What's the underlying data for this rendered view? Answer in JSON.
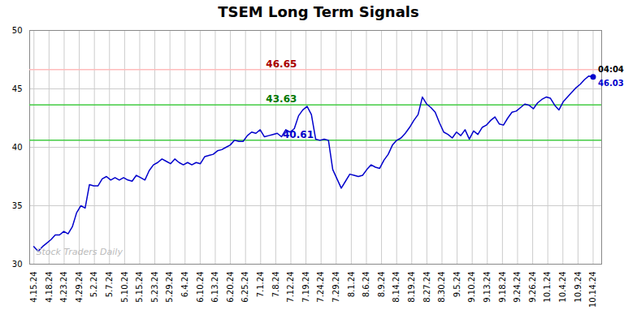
{
  "chart_data": {
    "type": "line",
    "title": "TSEM Long Term Signals",
    "color": "#0000cc",
    "values": [
      31.5,
      31.1,
      31.5,
      31.8,
      32.1,
      32.5,
      32.5,
      32.8,
      32.6,
      33.2,
      34.4,
      35.0,
      34.8,
      36.8,
      36.7,
      36.7,
      37.3,
      37.5,
      37.2,
      37.4,
      37.2,
      37.4,
      37.2,
      37.1,
      37.6,
      37.4,
      37.2,
      38.0,
      38.5,
      38.7,
      39.0,
      38.8,
      38.6,
      39.0,
      38.7,
      38.5,
      38.7,
      38.5,
      38.7,
      38.6,
      39.2,
      39.3,
      39.4,
      39.7,
      39.8,
      40.0,
      40.2,
      40.6,
      40.5,
      40.5,
      41.0,
      41.3,
      41.2,
      41.5,
      40.9,
      41.0,
      41.1,
      41.2,
      40.9,
      41.5,
      41.3,
      41.6,
      42.7,
      43.2,
      43.5,
      42.8,
      40.7,
      40.6,
      40.7,
      40.6,
      38.1,
      37.3,
      36.5,
      37.1,
      37.7,
      37.6,
      37.5,
      37.6,
      38.1,
      38.5,
      38.3,
      38.2,
      38.9,
      39.4,
      40.2,
      40.6,
      40.8,
      41.2,
      41.7,
      42.3,
      42.8,
      44.3,
      43.7,
      43.4,
      43.0,
      42.1,
      41.3,
      41.1,
      40.8,
      41.3,
      41.0,
      41.5,
      40.7,
      41.4,
      41.1,
      41.7,
      41.9,
      42.3,
      42.6,
      42.0,
      41.9,
      42.5,
      43.0,
      43.1,
      43.4,
      43.7,
      43.6,
      43.3,
      43.8,
      44.1,
      44.3,
      44.2,
      43.6,
      43.2,
      43.9,
      44.3,
      44.7,
      45.1,
      45.4,
      45.8,
      46.1,
      46.03
    ],
    "xlim": [
      -1,
      133
    ],
    "xticks": [
      {
        "value": 0,
        "label": "4.15.24"
      },
      {
        "value": 3.5405,
        "label": "4.18.24"
      },
      {
        "value": 7.0811,
        "label": "4.23.24"
      },
      {
        "value": 10.6216,
        "label": "4.29.24"
      },
      {
        "value": 14.1622,
        "label": "5.2.24"
      },
      {
        "value": 17.7027,
        "label": "5.7.24"
      },
      {
        "value": 21.2432,
        "label": "5.10.24"
      },
      {
        "value": 24.7838,
        "label": "5.15.24"
      },
      {
        "value": 28.3243,
        "label": "5.23.24"
      },
      {
        "value": 31.8649,
        "label": "5.29.24"
      },
      {
        "value": 35.4054,
        "label": "6.4.24"
      },
      {
        "value": 38.9459,
        "label": "6.10.24"
      },
      {
        "value": 42.4865,
        "label": "6.13.24"
      },
      {
        "value": 46.027,
        "label": "6.20.24"
      },
      {
        "value": 49.5676,
        "label": "6.25.24"
      },
      {
        "value": 53.1081,
        "label": "7.1.24"
      },
      {
        "value": 56.6486,
        "label": "7.8.24"
      },
      {
        "value": 60.1892,
        "label": "7.12.24"
      },
      {
        "value": 63.7297,
        "label": "7.19.24"
      },
      {
        "value": 67.2703,
        "label": "7.24.24"
      },
      {
        "value": 70.8108,
        "label": "7.29.24"
      },
      {
        "value": 74.3514,
        "label": "8.1.24"
      },
      {
        "value": 77.8919,
        "label": "8.6.24"
      },
      {
        "value": 81.4324,
        "label": "8.9.24"
      },
      {
        "value": 84.973,
        "label": "8.14.24"
      },
      {
        "value": 88.5135,
        "label": "8.19.24"
      },
      {
        "value": 92.0541,
        "label": "8.27.24"
      },
      {
        "value": 95.5946,
        "label": "8.30.24"
      },
      {
        "value": 99.1351,
        "label": "9.5.24"
      },
      {
        "value": 102.6757,
        "label": "9.10.24"
      },
      {
        "value": 106.2162,
        "label": "9.13.24"
      },
      {
        "value": 109.7568,
        "label": "9.18.24"
      },
      {
        "value": 113.2973,
        "label": "9.24.24"
      },
      {
        "value": 116.8378,
        "label": "9.26.24"
      },
      {
        "value": 120.3784,
        "label": "10.1.24"
      },
      {
        "value": 123.9189,
        "label": "10.4.24"
      },
      {
        "value": 127.4595,
        "label": "10.9.24"
      },
      {
        "value": 131,
        "label": "10.14.24"
      }
    ],
    "ylim": [
      30,
      50
    ],
    "yticks": [
      30,
      35,
      40,
      45,
      50
    ],
    "grid": true,
    "hlines": [
      {
        "value": 46.65,
        "color": "#ffbbbb",
        "label": "46.65",
        "label_color": "#aa0000"
      },
      {
        "value": 43.63,
        "color": "#44cc44",
        "label": "43.63",
        "label_color": "#007700"
      },
      {
        "value": 40.61,
        "color": "#44cc44",
        "label": "40.61",
        "label_color": "#0000cc"
      }
    ],
    "end_annotation": {
      "time": "04:04",
      "value": 46.03
    },
    "watermark": "Stock Traders Daily"
  }
}
